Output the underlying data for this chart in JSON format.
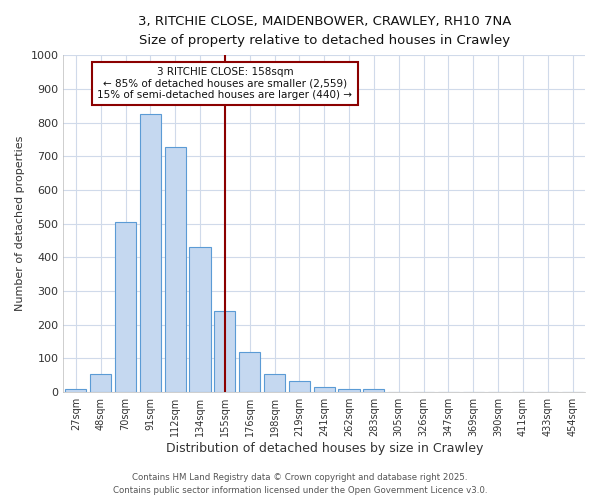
{
  "title1": "3, RITCHIE CLOSE, MAIDENBOWER, CRAWLEY, RH10 7NA",
  "title2": "Size of property relative to detached houses in Crawley",
  "xlabel": "Distribution of detached houses by size in Crawley",
  "ylabel": "Number of detached properties",
  "bin_labels": [
    "27sqm",
    "48sqm",
    "70sqm",
    "91sqm",
    "112sqm",
    "134sqm",
    "155sqm",
    "176sqm",
    "198sqm",
    "219sqm",
    "241sqm",
    "262sqm",
    "283sqm",
    "305sqm",
    "326sqm",
    "347sqm",
    "369sqm",
    "390sqm",
    "411sqm",
    "433sqm",
    "454sqm"
  ],
  "bar_heights": [
    10,
    55,
    505,
    825,
    728,
    430,
    240,
    118,
    55,
    33,
    15,
    10,
    10,
    0,
    0,
    0,
    0,
    0,
    0,
    0,
    0
  ],
  "bar_color": "#c5d8f0",
  "bar_edge_color": "#5b9bd5",
  "vline_color": "#8b0000",
  "vline_x": 6,
  "annotation_title": "3 RITCHIE CLOSE: 158sqm",
  "annotation_line1": "← 85% of detached houses are smaller (2,559)",
  "annotation_line2": "15% of semi-detached houses are larger (440) →",
  "annotation_box_color": "#8b0000",
  "ylim": [
    0,
    1000
  ],
  "yticks": [
    0,
    100,
    200,
    300,
    400,
    500,
    600,
    700,
    800,
    900,
    1000
  ],
  "footer_line1": "Contains HM Land Registry data © Crown copyright and database right 2025.",
  "footer_line2": "Contains public sector information licensed under the Open Government Licence v3.0.",
  "background_color": "#ffffff",
  "grid_color": "#d0daea",
  "title1_fontsize": 10,
  "title2_fontsize": 9
}
